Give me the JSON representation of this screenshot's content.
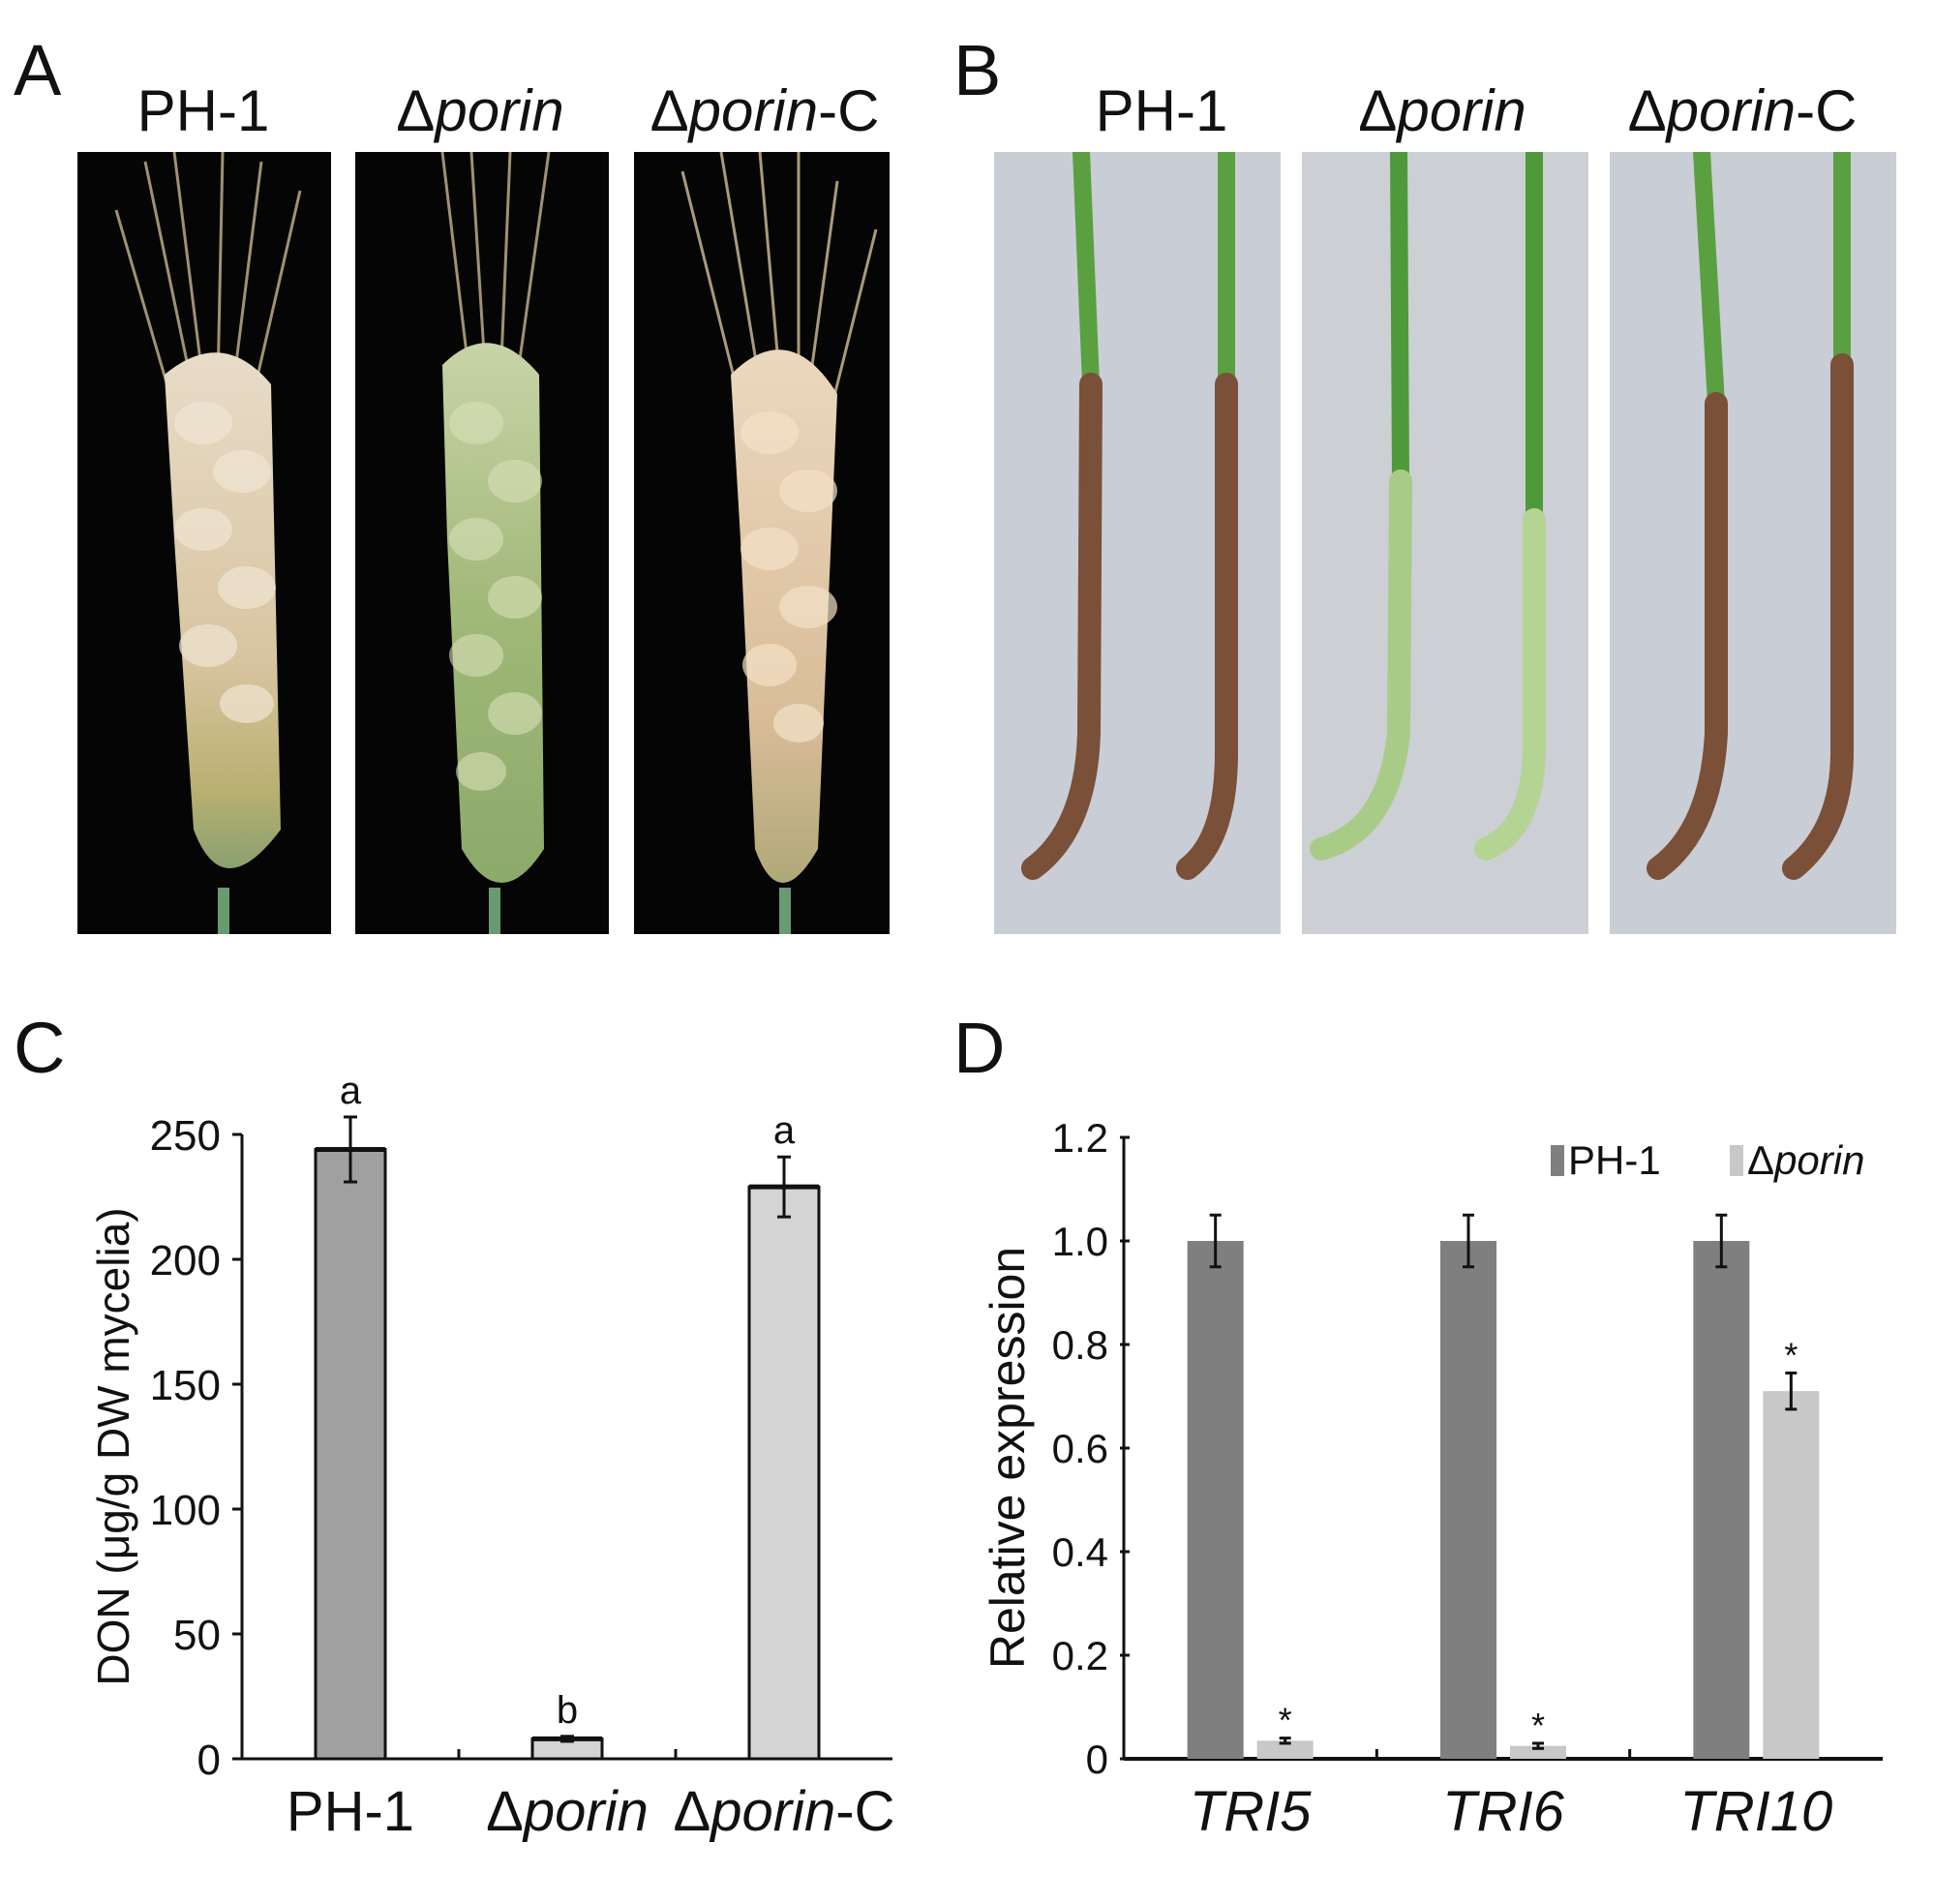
{
  "panels": {
    "A": {
      "letter": "A",
      "columns": [
        {
          "prefix": "",
          "italic": "",
          "suffix": "PH-1"
        },
        {
          "prefix": "Δ",
          "italic": "porin",
          "suffix": ""
        },
        {
          "prefix": "Δ",
          "italic": "porin",
          "suffix": "-C"
        }
      ]
    },
    "B": {
      "letter": "B",
      "columns": [
        {
          "prefix": "",
          "italic": "",
          "suffix": "PH-1"
        },
        {
          "prefix": "Δ",
          "italic": "porin",
          "suffix": ""
        },
        {
          "prefix": "Δ",
          "italic": "porin",
          "suffix": "-C"
        }
      ]
    },
    "C": {
      "letter": "C"
    },
    "D": {
      "letter": "D"
    }
  },
  "colors": {
    "dark_bar": "#7f7f7f",
    "mid_bar": "#a0a0a0",
    "light_bar": "#d4d4d4",
    "d_light_bar": "#c8c8c8",
    "photo_bg_A": "#050505",
    "photo_bg_B": "#c9cdd6"
  },
  "chart_data": [
    {
      "type": "bar",
      "panel": "C",
      "categories": [
        "PH-1",
        "Δporin",
        "Δporin-C"
      ],
      "category_parts": [
        {
          "prefix": "",
          "italic": "",
          "suffix": "PH-1"
        },
        {
          "prefix": "Δ",
          "italic": "porin",
          "suffix": ""
        },
        {
          "prefix": "Δ",
          "italic": "porin",
          "suffix": "-C"
        }
      ],
      "values": [
        244,
        8,
        229
      ],
      "errors": [
        13,
        1,
        12
      ],
      "significance": [
        "a",
        "b",
        "a"
      ],
      "bar_colors": [
        "#a0a0a0",
        "#d4d4d4",
        "#d4d4d4"
      ],
      "ylabel": "DON (μg/g DW mycelia)",
      "ylim": [
        0,
        250
      ],
      "yticks": [
        0,
        50,
        100,
        150,
        200,
        250
      ],
      "grid": false
    },
    {
      "type": "bar",
      "panel": "D",
      "categories": [
        "TRI5",
        "TRI6",
        "TRI10"
      ],
      "series": [
        {
          "name": "PH-1",
          "values": [
            1.0,
            1.0,
            1.0
          ],
          "errors": [
            0.05,
            0.05,
            0.05
          ],
          "color": "#7f7f7f",
          "marks": [
            "",
            "",
            ""
          ]
        },
        {
          "name": "Δporin",
          "values": [
            0.035,
            0.025,
            0.71
          ],
          "errors": [
            0.005,
            0.005,
            0.035
          ],
          "color": "#c8c8c8",
          "marks": [
            "*",
            "*",
            "*"
          ]
        }
      ],
      "legend_parts": [
        {
          "prefix": "",
          "italic": "",
          "suffix": "PH-1"
        },
        {
          "prefix": "Δ",
          "italic": "porin",
          "suffix": ""
        }
      ],
      "ylabel": "Relative expression",
      "ylim": [
        0,
        1.2
      ],
      "yticks": [
        "0",
        "0.2",
        "0.4",
        "0.6",
        "0.8",
        "1.0",
        "1.2"
      ],
      "legend_position": "top-right",
      "grid": false
    }
  ]
}
